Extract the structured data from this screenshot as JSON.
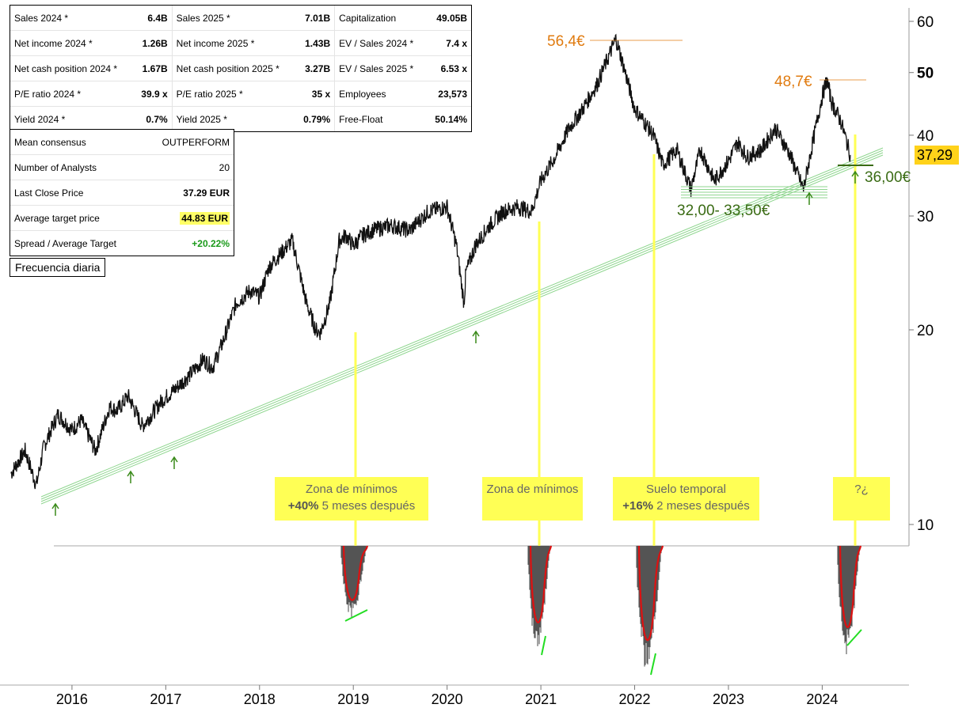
{
  "fundamentals": {
    "rows": [
      [
        [
          "Sales 2024 *",
          "6.4B"
        ],
        [
          "Sales 2025 *",
          "7.01B"
        ],
        [
          "Capitalization",
          "49.05B"
        ]
      ],
      [
        [
          "Net income 2024 *",
          "1.26B"
        ],
        [
          "Net income 2025 *",
          "1.43B"
        ],
        [
          "EV / Sales 2024 *",
          "7.4 x"
        ]
      ],
      [
        [
          "Net cash position 2024 *",
          "1.67B"
        ],
        [
          "Net cash position 2025 *",
          "3.27B"
        ],
        [
          "EV / Sales 2025 *",
          "6.53 x"
        ]
      ],
      [
        [
          "P/E ratio 2024 *",
          "39.9 x"
        ],
        [
          "P/E ratio 2025 *",
          "35 x"
        ],
        [
          "Employees",
          "23,573"
        ]
      ],
      [
        [
          "Yield 2024 *",
          "0.7%"
        ],
        [
          "Yield 2025 *",
          "0.79%"
        ],
        [
          "Free-Float",
          "50.14%"
        ]
      ]
    ]
  },
  "consensus": {
    "rows": [
      [
        "Mean consensus",
        "OUTPERFORM"
      ],
      [
        "Number of Analysts",
        "20"
      ],
      [
        "Last Close Price",
        "37.29 EUR"
      ],
      [
        "Average target price",
        "44.83 EUR"
      ],
      [
        "Spread / Average Target",
        "+20.22%"
      ]
    ]
  },
  "frequency_label": "Frecuencia diaria",
  "colors": {
    "highlight": "#ffff55",
    "price_badge": "#ffd21a",
    "orange": "#e07b10",
    "dark_green": "#3a6b14",
    "trend_green": "#8fd68f",
    "oscillator_red": "#dd1111",
    "oscillator_bar": "#555555",
    "divergence_green": "#22dd22"
  },
  "chart_data": {
    "type": "line",
    "scale": "log",
    "y_ticks": [
      "10",
      "20",
      "30",
      "40",
      "50",
      "60"
    ],
    "x_ticks": [
      "2016",
      "2017",
      "2018",
      "2019",
      "2020",
      "2021",
      "2022",
      "2023",
      "2024"
    ],
    "ylim": [
      9.5,
      64
    ],
    "xlim": [
      2015.3,
      2024.9
    ],
    "last_price_label": "37,29",
    "series": [
      {
        "x": [
          2015.35,
          2015.5,
          2015.62,
          2015.7,
          2015.85,
          2016.0,
          2016.1,
          2016.25,
          2016.4,
          2016.48,
          2016.6,
          2016.75,
          2016.85,
          2016.95,
          2017.1,
          2017.25,
          2017.4,
          2017.5,
          2017.6,
          2017.75,
          2017.9,
          2018.0,
          2018.1,
          2018.2,
          2018.35,
          2018.5,
          2018.6,
          2018.65,
          2018.75,
          2018.85,
          2018.92,
          2019.0,
          2019.1,
          2019.2,
          2019.4,
          2019.6,
          2019.8,
          2020.0,
          2020.1,
          2020.18,
          2020.2,
          2020.3,
          2020.45,
          2020.6,
          2020.75,
          2020.9,
          2021.0,
          2021.15,
          2021.3,
          2021.45,
          2021.6,
          2021.7,
          2021.8,
          2021.9,
          2022.0,
          2022.1,
          2022.2,
          2022.3,
          2022.45,
          2022.6,
          2022.7,
          2022.85,
          2023.0,
          2023.1,
          2023.2,
          2023.35,
          2023.5,
          2023.65,
          2023.8,
          2023.9,
          2024.0,
          2024.05,
          2024.1,
          2024.2,
          2024.3
        ],
        "values": [
          12.0,
          13.0,
          11.5,
          13.2,
          14.8,
          14.0,
          14.5,
          13.0,
          15.2,
          15.0,
          15.8,
          14.2,
          14.8,
          15.5,
          16.2,
          17.0,
          18.0,
          17.5,
          19.0,
          22.0,
          23.0,
          22.5,
          25.0,
          26.0,
          27.5,
          22.0,
          20.0,
          19.8,
          22.0,
          27.5,
          28.0,
          27.0,
          28.0,
          28.5,
          29.0,
          28.5,
          30.5,
          31.0,
          27.0,
          22.0,
          24.5,
          27.0,
          29.0,
          30.5,
          31.0,
          30.5,
          34.0,
          37.0,
          41.0,
          44.0,
          48.0,
          52.0,
          56.4,
          50.0,
          44.0,
          42.0,
          40.0,
          36.0,
          38.0,
          33.0,
          38.0,
          34.0,
          36.5,
          39.0,
          37.0,
          38.0,
          41.0,
          37.5,
          33.0,
          39.0,
          46.0,
          48.7,
          45.0,
          42.0,
          37.29
        ]
      }
    ],
    "annotations": [
      "56,4€",
      "48,7€",
      "32,00- 33,50€",
      "36,00€"
    ],
    "zones": [
      {
        "line1": "Zona de mínimos",
        "line2_bold": "+40%",
        "line2_rest": " 5 meses después"
      },
      {
        "line1": "Zona de mínimos",
        "line2_bold": "",
        "line2_rest": ""
      },
      {
        "line1": "Suelo temporal",
        "line2_bold": "+16%",
        "line2_rest": " 2 meses después"
      },
      {
        "line1": "?¿",
        "line2_bold": "",
        "line2_rest": ""
      }
    ]
  }
}
